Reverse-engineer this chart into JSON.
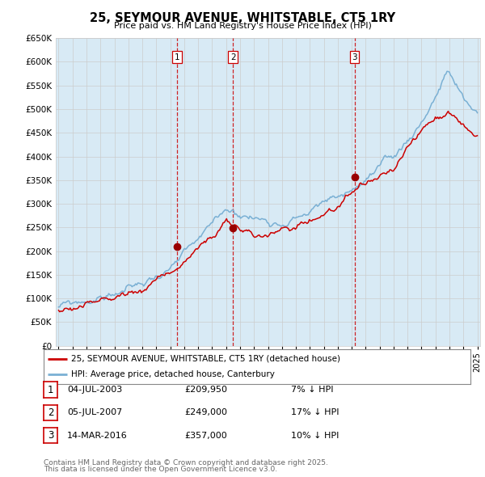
{
  "title": "25, SEYMOUR AVENUE, WHITSTABLE, CT5 1RY",
  "subtitle": "Price paid vs. HM Land Registry's House Price Index (HPI)",
  "x_start_year": 1995,
  "x_end_year": 2025,
  "y_min": 0,
  "y_max": 650000,
  "y_ticks": [
    0,
    50000,
    100000,
    150000,
    200000,
    250000,
    300000,
    350000,
    400000,
    450000,
    500000,
    550000,
    600000,
    650000
  ],
  "hpi_color": "#7ab0d4",
  "hpi_fill_color": "#d8eaf5",
  "price_color": "#cc0000",
  "sale_marker_color": "#990000",
  "vline_color": "#cc0000",
  "grid_color": "#cccccc",
  "background_color": "#ffffff",
  "plot_bg_color": "#ffffff",
  "sales": [
    {
      "date_num": 2003.5,
      "price": 209950,
      "label": "1"
    },
    {
      "date_num": 2007.5,
      "price": 249000,
      "label": "2"
    },
    {
      "date_num": 2016.2,
      "price": 357000,
      "label": "3"
    }
  ],
  "legend_line1": "25, SEYMOUR AVENUE, WHITSTABLE, CT5 1RY (detached house)",
  "legend_line2": "HPI: Average price, detached house, Canterbury",
  "sale_rows": [
    [
      "1",
      "04-JUL-2003",
      "£209,950",
      "7% ↓ HPI"
    ],
    [
      "2",
      "05-JUL-2007",
      "£249,000",
      "17% ↓ HPI"
    ],
    [
      "3",
      "14-MAR-2016",
      "£357,000",
      "10% ↓ HPI"
    ]
  ],
  "footer1": "Contains HM Land Registry data © Crown copyright and database right 2025.",
  "footer2": "This data is licensed under the Open Government Licence v3.0."
}
